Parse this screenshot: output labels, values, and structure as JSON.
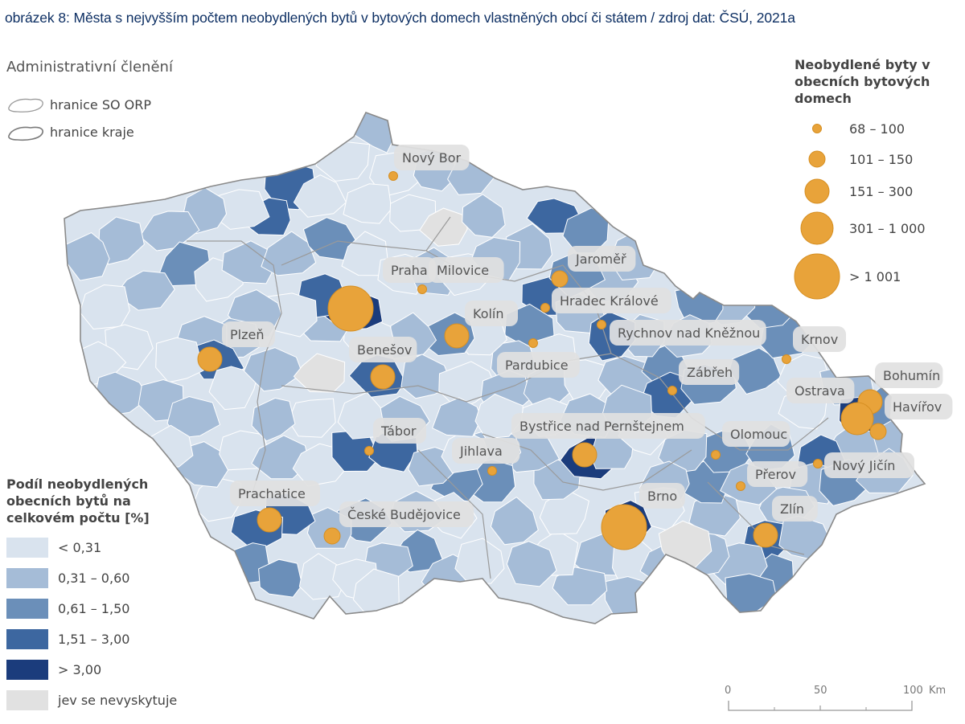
{
  "title": "obrázek 8: Města s nejvyšším počtem neobydlených bytů v bytových domech vlastněných obcí či státem / zdroj dat: ČSÚ, 2021a",
  "admin_legend": {
    "title": "Administrativní členění",
    "items": [
      {
        "label": "hranice SO ORP",
        "icon": "orp-boundary-icon"
      },
      {
        "label": "hranice kraje",
        "icon": "region-boundary-icon"
      }
    ]
  },
  "choropleth_legend": {
    "title_lines": [
      "Podíl neobydlených",
      "obecních bytů na",
      "celkovém počtu [%]"
    ],
    "classes": [
      {
        "label": "< 0,31",
        "color": "#d9e3ee"
      },
      {
        "label": "0,31 – 0,60",
        "color": "#a5bcd7"
      },
      {
        "label": "0,61 – 1,50",
        "color": "#6b8fb9"
      },
      {
        "label": "1,51 – 3,00",
        "color": "#3d67a0"
      },
      {
        "label": "> 3,00",
        "color": "#1b3c7c"
      },
      {
        "label": "jev se nevyskytuje",
        "color": "#e1e1e1"
      }
    ]
  },
  "symbol_legend": {
    "title_lines": [
      "Neobydlené byty v",
      "obecních bytových",
      "domech"
    ],
    "color": "#e8a33a",
    "classes": [
      {
        "label": "68 – 100"
      },
      {
        "label": "101 – 150"
      },
      {
        "label": "151 – 300"
      },
      {
        "label": "301 – 1 000"
      },
      {
        "label": "> 1 001"
      }
    ]
  },
  "scale_bar": {
    "ticks": [
      "0",
      "50",
      "100"
    ],
    "unit": "Km"
  },
  "cities": [
    {
      "name": "Nový Bor",
      "class": 0
    },
    {
      "name": "Praha",
      "class": 4
    },
    {
      "name": "Milovice",
      "class": 0
    },
    {
      "name": "Jaroměř",
      "class": 1
    },
    {
      "name": "Kolín",
      "class": 2
    },
    {
      "name": "Hradec Králové",
      "class": 0
    },
    {
      "name": "Plzeň",
      "class": 2
    },
    {
      "name": "Rychnov nad Kněžnou",
      "class": 0
    },
    {
      "name": "Benešov",
      "class": 2
    },
    {
      "name": "Pardubice",
      "class": 0
    },
    {
      "name": "Krnov",
      "class": 0
    },
    {
      "name": "Zábřeh",
      "class": 0
    },
    {
      "name": "Bohumín",
      "class": 2
    },
    {
      "name": "Ostrava",
      "class": 3
    },
    {
      "name": "Havířov",
      "class": 1
    },
    {
      "name": "Tábor",
      "class": 0
    },
    {
      "name": "Bystřice nad Pernštejnem",
      "class": 2
    },
    {
      "name": "Jihlava",
      "class": 0
    },
    {
      "name": "Olomouc",
      "class": 0
    },
    {
      "name": "Nový Jičín",
      "class": 0
    },
    {
      "name": "Přerov",
      "class": 0
    },
    {
      "name": "Prachatice",
      "class": 2
    },
    {
      "name": "Brno",
      "class": 4
    },
    {
      "name": "České Budějovice",
      "class": 1
    },
    {
      "name": "Zlín",
      "class": 2
    }
  ]
}
